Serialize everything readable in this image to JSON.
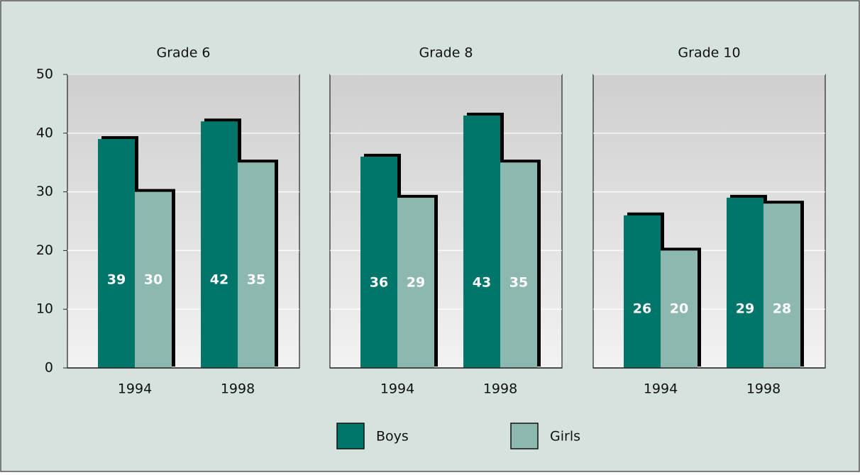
{
  "chart_data": [
    {
      "type": "bar",
      "title": "Grade 6",
      "categories": [
        "1994",
        "1998"
      ],
      "series": [
        {
          "name": "Boys",
          "color": "#00756a",
          "values": [
            39,
            42
          ]
        },
        {
          "name": "Girls",
          "color": "#8cb8b0",
          "values": [
            30,
            35
          ]
        }
      ],
      "ylim": [
        0,
        50
      ],
      "yticks": [
        0,
        10,
        20,
        30,
        40,
        50
      ],
      "grid": true
    },
    {
      "type": "bar",
      "title": "Grade 8",
      "categories": [
        "1994",
        "1998"
      ],
      "series": [
        {
          "name": "Boys",
          "color": "#00756a",
          "values": [
            36,
            43
          ]
        },
        {
          "name": "Girls",
          "color": "#8cb8b0",
          "values": [
            29,
            35
          ]
        }
      ],
      "ylim": [
        0,
        50
      ],
      "yticks": [
        0,
        10,
        20,
        30,
        40,
        50
      ],
      "grid": true
    },
    {
      "type": "bar",
      "title": "Grade 10",
      "categories": [
        "1994",
        "1998"
      ],
      "series": [
        {
          "name": "Boys",
          "color": "#00756a",
          "values": [
            26,
            29
          ]
        },
        {
          "name": "Girls",
          "color": "#8cb8b0",
          "values": [
            20,
            28
          ]
        }
      ],
      "ylim": [
        0,
        50
      ],
      "yticks": [
        0,
        10,
        20,
        30,
        40,
        50
      ],
      "grid": true
    }
  ]
}
